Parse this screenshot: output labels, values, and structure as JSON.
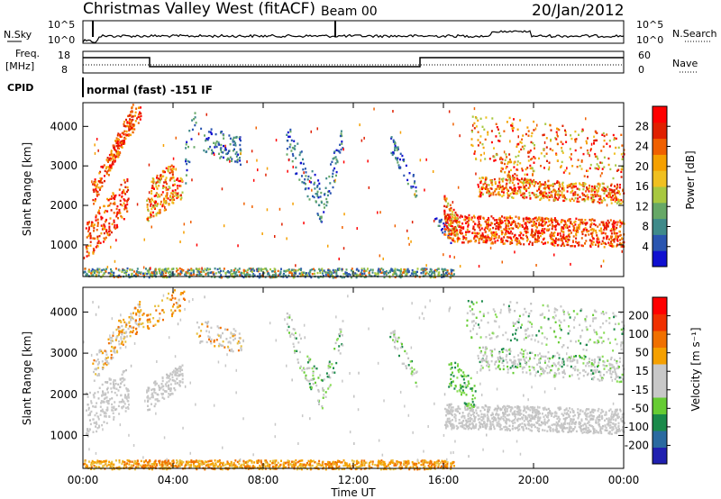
{
  "header": {
    "station": "Christmas Valley West (fitACF)",
    "beam": "Beam 00",
    "date": "20/Jan/2012"
  },
  "top_panels": {
    "nsky_label": "N.Sky",
    "nsky_ticks": [
      "10^5",
      "10^0"
    ],
    "nsearch_label": "N.Search",
    "nsearch_ticks": [
      "10^5",
      "10^0"
    ],
    "freq_label_1": "Freq.",
    "freq_label_2": "[MHz]",
    "freq_ticks": [
      "18",
      "8"
    ],
    "nave_label": "Nave",
    "nave_ticks": [
      "60",
      "0"
    ],
    "cpid_label": "CPID",
    "cpid_text": "normal (fast) -151 IF"
  },
  "chart_data": [
    {
      "type": "heatmap",
      "name": "power-panel",
      "ylabel": "Slant Range [km]",
      "yticks": [
        "1000",
        "2000",
        "3000",
        "4000"
      ],
      "ylim": [
        200,
        4600
      ],
      "xlim": [
        0,
        24
      ],
      "colorbar": {
        "label": "Power [dB]",
        "ticks": [
          "4",
          "8",
          "12",
          "16",
          "20",
          "24",
          "28"
        ],
        "colors": [
          "#1010d0",
          "#2a55b0",
          "#3f8a8a",
          "#66a866",
          "#a8c840",
          "#f0c020",
          "#f5a000",
          "#f06000",
          "#e02000",
          "#ff0000"
        ]
      }
    },
    {
      "type": "heatmap",
      "name": "velocity-panel",
      "ylabel": "Slant Range [km]",
      "yticks": [
        "1000",
        "2000",
        "3000",
        "4000"
      ],
      "ylim": [
        200,
        4600
      ],
      "xlim": [
        0,
        24
      ],
      "colorbar": {
        "label": "Velocity [m s⁻¹]",
        "ticks": [
          "200",
          "100",
          "50",
          "15",
          "-15",
          "-50",
          "-100",
          "-200"
        ],
        "colors": [
          "#2020b0",
          "#2a6aa0",
          "#1a8a4a",
          "#66cc33",
          "#c8c8c8",
          "#c8c8c8",
          "#f5a000",
          "#f07000",
          "#f03000",
          "#ff0000"
        ]
      }
    }
  ],
  "xaxis": {
    "ticks": [
      "00:00",
      "04:00",
      "08:00",
      "12:00",
      "16:00",
      "20:00",
      "00:00"
    ],
    "label": "Time UT"
  }
}
